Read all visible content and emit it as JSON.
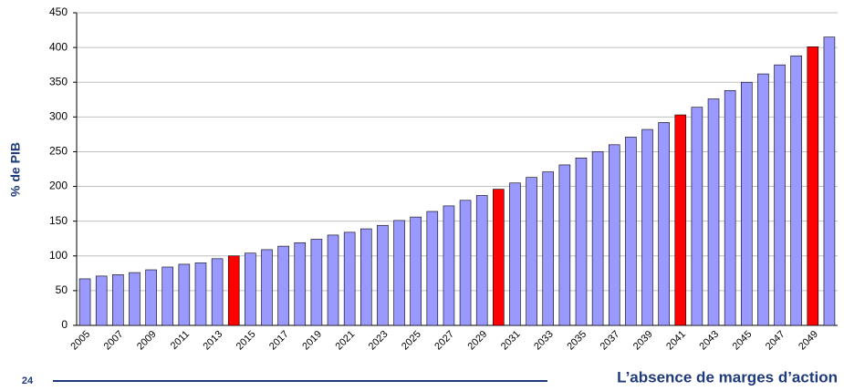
{
  "chart_data": {
    "type": "bar",
    "y_label": "% de PIB",
    "categories": [
      "2005",
      null,
      "2007",
      null,
      "2009",
      null,
      "2011",
      null,
      "2013",
      null,
      "2015",
      null,
      "2017",
      null,
      "2019",
      null,
      "2021",
      null,
      "2023",
      null,
      "2025",
      null,
      "2027",
      null,
      "2029",
      null,
      "2031",
      null,
      "2033",
      null,
      "2035",
      null,
      "2037",
      null,
      "2039",
      null,
      "2041",
      null,
      "2043",
      null,
      "2045",
      null,
      "2047",
      null,
      "2049",
      null
    ],
    "values": [
      67,
      71,
      73,
      76,
      80,
      84,
      88,
      90,
      96,
      100,
      104,
      109,
      114,
      119,
      124,
      130,
      134,
      139,
      144,
      151,
      156,
      164,
      172,
      180,
      187,
      196,
      205,
      213,
      221,
      231,
      241,
      250,
      260,
      271,
      282,
      292,
      303,
      314,
      326,
      338,
      350,
      362,
      375,
      388,
      401,
      415
    ],
    "colors": [
      "#9999ff",
      "#9999ff",
      "#9999ff",
      "#9999ff",
      "#9999ff",
      "#9999ff",
      "#9999ff",
      "#9999ff",
      "#9999ff",
      "#ff0000",
      "#9999ff",
      "#9999ff",
      "#9999ff",
      "#9999ff",
      "#9999ff",
      "#9999ff",
      "#9999ff",
      "#9999ff",
      "#9999ff",
      "#9999ff",
      "#9999ff",
      "#9999ff",
      "#9999ff",
      "#9999ff",
      "#9999ff",
      "#ff0000",
      "#9999ff",
      "#9999ff",
      "#9999ff",
      "#9999ff",
      "#9999ff",
      "#9999ff",
      "#9999ff",
      "#9999ff",
      "#9999ff",
      "#9999ff",
      "#ff0000",
      "#9999ff",
      "#9999ff",
      "#9999ff",
      "#9999ff",
      "#9999ff",
      "#9999ff",
      "#9999ff",
      "#ff0000",
      "#9999ff"
    ],
    "ylim": [
      0,
      450
    ],
    "yticks": [
      0,
      50,
      100,
      150,
      200,
      250,
      300,
      350,
      400,
      450
    ],
    "grid": true
  },
  "footer": {
    "page": "24",
    "text": "L’absence de marges d’action"
  }
}
